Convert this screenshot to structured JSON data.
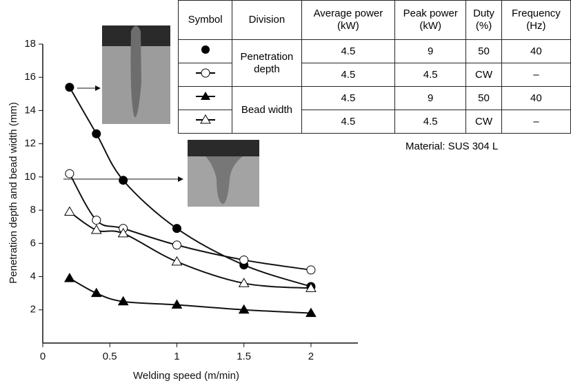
{
  "chart_data": {
    "type": "scatter",
    "x_label": "Welding speed (m/min)",
    "y_label": "Penetration depth and bead width (mm)",
    "xlim": [
      0,
      2.35
    ],
    "ylim": [
      0,
      18
    ],
    "xticks": [
      0,
      0.5,
      1,
      1.5,
      2
    ],
    "yticks": [
      2,
      4,
      6,
      8,
      10,
      12,
      14,
      16,
      18
    ],
    "series": [
      {
        "marker": "circle",
        "filled": true,
        "x": [
          0.2,
          0.4,
          0.6,
          1,
          1.5,
          2
        ],
        "values": [
          15.4,
          12.6,
          9.8,
          6.9,
          4.7,
          3.4
        ]
      },
      {
        "marker": "circle",
        "filled": false,
        "x": [
          0.2,
          0.4,
          0.6,
          1,
          1.5,
          2
        ],
        "values": [
          10.2,
          7.4,
          6.9,
          5.9,
          5.0,
          4.4
        ]
      },
      {
        "marker": "triangle",
        "filled": true,
        "x": [
          0.2,
          0.4,
          0.6,
          1,
          1.5,
          2
        ],
        "values": [
          3.9,
          3.0,
          2.5,
          2.3,
          2.0,
          1.8
        ]
      },
      {
        "marker": "triangle",
        "filled": false,
        "x": [
          0.2,
          0.4,
          0.6,
          1,
          1.5,
          2
        ],
        "values": [
          7.9,
          6.8,
          6.6,
          4.9,
          3.6,
          3.3
        ]
      }
    ]
  },
  "table": {
    "columns": [
      "Symbol",
      "Division",
      "Average power\n(kW)",
      "Peak power\n(kW)",
      "Duty\n(%)",
      "Frequency\n(Hz)"
    ],
    "divisions": [
      "Penetration\ndepth",
      "Bead width"
    ],
    "rows": [
      [
        "4.5",
        "9",
        "50",
        "40"
      ],
      [
        "4.5",
        "4.5",
        "CW",
        "–"
      ],
      [
        "4.5",
        "9",
        "50",
        "40"
      ],
      [
        "4.5",
        "4.5",
        "CW",
        "–"
      ]
    ]
  },
  "note": "Material: SUS 304 L"
}
